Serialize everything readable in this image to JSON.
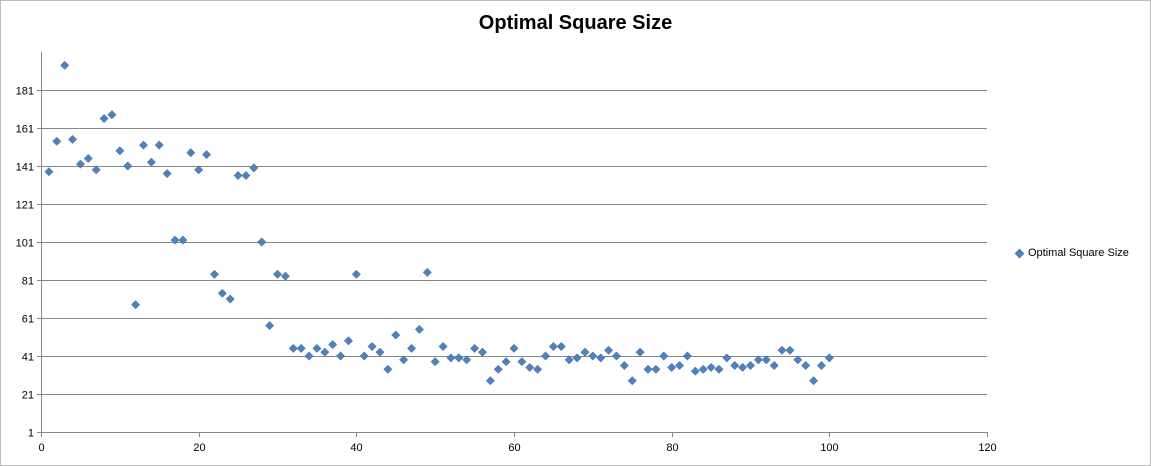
{
  "chart_data": {
    "type": "scatter",
    "title": "Optimal Square Size",
    "xlabel": "",
    "ylabel": "",
    "xlim": [
      0,
      120
    ],
    "ylim": [
      1,
      201
    ],
    "x_ticks": [
      0,
      20,
      40,
      60,
      80,
      100,
      120
    ],
    "y_ticks": [
      1,
      21,
      41,
      61,
      81,
      101,
      121,
      141,
      161,
      181
    ],
    "grid": "horizontal",
    "legend_position": "right",
    "marker": "diamond",
    "colors": {
      "series": "#4f81bd",
      "grid": "#868686",
      "axis": "#868686"
    },
    "series": [
      {
        "name": "Optimal Square Size",
        "points": [
          [
            1,
            138
          ],
          [
            2,
            154
          ],
          [
            3,
            194
          ],
          [
            4,
            155
          ],
          [
            5,
            142
          ],
          [
            6,
            145
          ],
          [
            7,
            139
          ],
          [
            8,
            166
          ],
          [
            9,
            168
          ],
          [
            10,
            149
          ],
          [
            11,
            141
          ],
          [
            12,
            68
          ],
          [
            13,
            152
          ],
          [
            14,
            143
          ],
          [
            15,
            152
          ],
          [
            16,
            137
          ],
          [
            17,
            102
          ],
          [
            18,
            102
          ],
          [
            19,
            148
          ],
          [
            20,
            139
          ],
          [
            21,
            147
          ],
          [
            22,
            84
          ],
          [
            23,
            74
          ],
          [
            24,
            71
          ],
          [
            25,
            136
          ],
          [
            26,
            136
          ],
          [
            27,
            140
          ],
          [
            28,
            101
          ],
          [
            29,
            57
          ],
          [
            30,
            84
          ],
          [
            31,
            83
          ],
          [
            32,
            45
          ],
          [
            33,
            45
          ],
          [
            34,
            41
          ],
          [
            35,
            45
          ],
          [
            36,
            43
          ],
          [
            37,
            47
          ],
          [
            38,
            41
          ],
          [
            39,
            49
          ],
          [
            40,
            84
          ],
          [
            41,
            41
          ],
          [
            42,
            46
          ],
          [
            43,
            43
          ],
          [
            44,
            34
          ],
          [
            45,
            52
          ],
          [
            46,
            39
          ],
          [
            47,
            45
          ],
          [
            48,
            55
          ],
          [
            49,
            85
          ],
          [
            50,
            38
          ],
          [
            51,
            46
          ],
          [
            52,
            40
          ],
          [
            53,
            40
          ],
          [
            54,
            39
          ],
          [
            55,
            45
          ],
          [
            56,
            43
          ],
          [
            57,
            28
          ],
          [
            58,
            34
          ],
          [
            59,
            38
          ],
          [
            60,
            45
          ],
          [
            61,
            38
          ],
          [
            62,
            35
          ],
          [
            63,
            34
          ],
          [
            64,
            41
          ],
          [
            65,
            46
          ],
          [
            66,
            46
          ],
          [
            67,
            39
          ],
          [
            68,
            40
          ],
          [
            69,
            43
          ],
          [
            70,
            41
          ],
          [
            71,
            40
          ],
          [
            72,
            44
          ],
          [
            73,
            41
          ],
          [
            74,
            36
          ],
          [
            75,
            28
          ],
          [
            76,
            43
          ],
          [
            77,
            34
          ],
          [
            78,
            34
          ],
          [
            79,
            41
          ],
          [
            80,
            35
          ],
          [
            81,
            36
          ],
          [
            82,
            41
          ],
          [
            83,
            33
          ],
          [
            84,
            34
          ],
          [
            85,
            35
          ],
          [
            86,
            34
          ],
          [
            87,
            40
          ],
          [
            88,
            36
          ],
          [
            89,
            35
          ],
          [
            90,
            36
          ],
          [
            91,
            39
          ],
          [
            92,
            39
          ],
          [
            93,
            36
          ],
          [
            94,
            44
          ],
          [
            95,
            44
          ],
          [
            96,
            39
          ],
          [
            97,
            36
          ],
          [
            98,
            28
          ],
          [
            99,
            36
          ],
          [
            100,
            40
          ]
        ]
      }
    ]
  }
}
